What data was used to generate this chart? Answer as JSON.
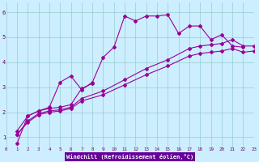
{
  "xlabel": "Windchill (Refroidissement éolien,°C)",
  "bg_color": "#cceeff",
  "line_color": "#990099",
  "xlim": [
    0,
    23
  ],
  "ylim": [
    0.6,
    6.4
  ],
  "xticks": [
    0,
    1,
    2,
    3,
    4,
    5,
    6,
    7,
    8,
    9,
    10,
    11,
    12,
    13,
    14,
    15,
    16,
    17,
    18,
    19,
    20,
    21,
    22,
    23
  ],
  "yticks": [
    1,
    2,
    3,
    4,
    5,
    6
  ],
  "series": [
    {
      "x": [
        1,
        2,
        3,
        4,
        5,
        6,
        7,
        8,
        9,
        10,
        11,
        12,
        13,
        14,
        15,
        16,
        17,
        18,
        19,
        20,
        21,
        22
      ],
      "y": [
        1.25,
        1.85,
        2.05,
        2.2,
        3.2,
        3.45,
        2.9,
        3.2,
        4.2,
        4.6,
        5.85,
        5.65,
        5.85,
        5.85,
        5.9,
        5.15,
        5.45,
        5.45,
        4.9,
        5.1,
        4.65,
        4.6
      ]
    },
    {
      "x": [
        1,
        2,
        3,
        4,
        5,
        6,
        7,
        8
      ],
      "y": [
        0.75,
        1.85,
        2.05,
        2.15,
        2.2,
        2.3,
        2.95,
        3.15
      ]
    },
    {
      "x": [
        1,
        2,
        3,
        4,
        5,
        6,
        7,
        9,
        11,
        13,
        15,
        17,
        18,
        19,
        20,
        21,
        22,
        23
      ],
      "y": [
        1.1,
        1.65,
        1.95,
        2.05,
        2.1,
        2.2,
        2.55,
        2.85,
        3.3,
        3.75,
        4.1,
        4.55,
        4.65,
        4.7,
        4.75,
        4.9,
        4.65,
        4.65
      ]
    },
    {
      "x": [
        1,
        2,
        3,
        4,
        5,
        6,
        7,
        9,
        11,
        13,
        15,
        17,
        18,
        19,
        20,
        21,
        22,
        23
      ],
      "y": [
        1.1,
        1.6,
        1.9,
        2.0,
        2.05,
        2.15,
        2.45,
        2.7,
        3.1,
        3.5,
        3.85,
        4.25,
        4.35,
        4.4,
        4.45,
        4.55,
        4.4,
        4.45
      ]
    }
  ]
}
